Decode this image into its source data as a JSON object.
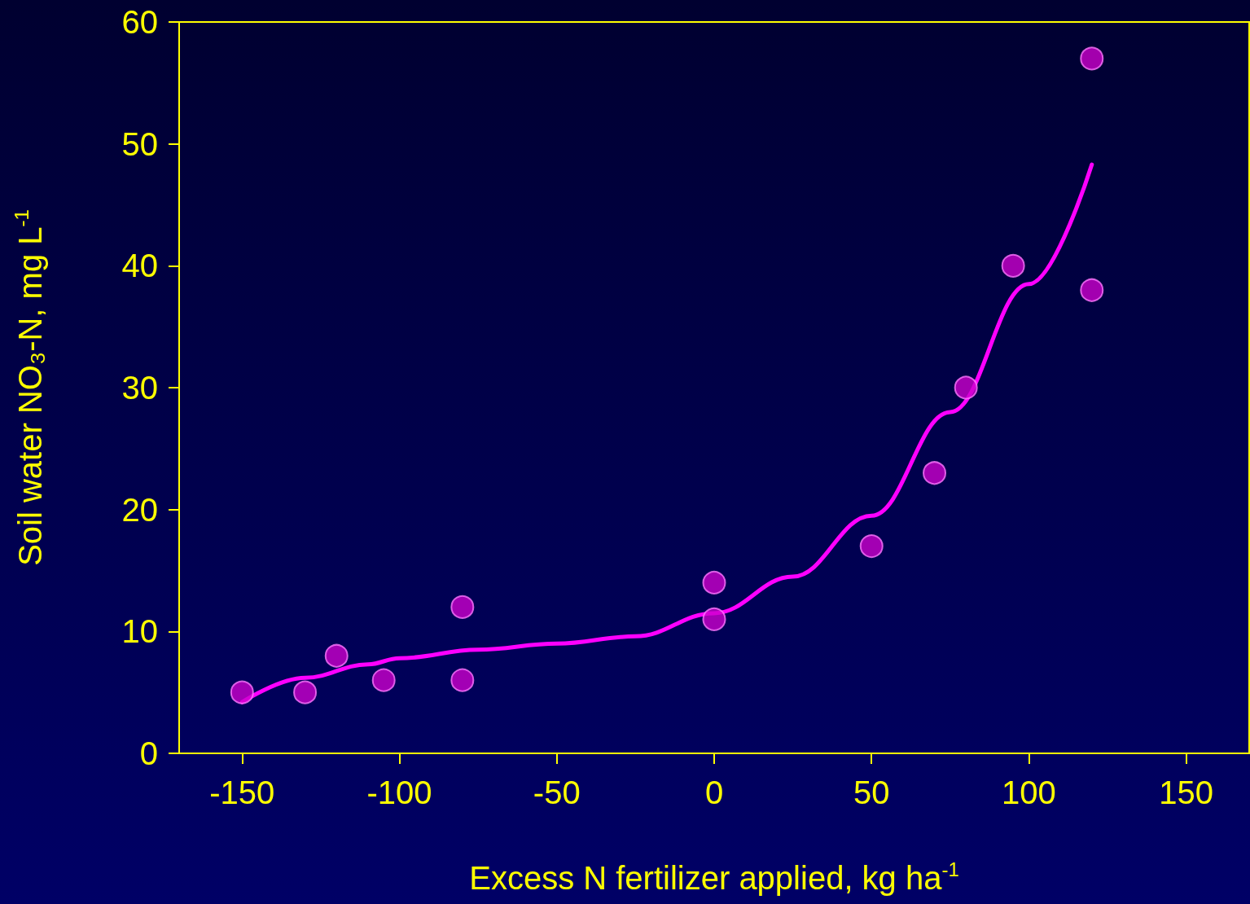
{
  "chart_data": {
    "type": "scatter",
    "xlabel": "Excess N fertilizer applied, kg ha$^{-1}$",
    "ylabel": "Soil water NO₃-N, mg L$^{-1}$",
    "xlim": [
      -170,
      170
    ],
    "xticks": [
      -150,
      -100,
      -50,
      0,
      50,
      100,
      150
    ],
    "ylim": [
      0,
      60
    ],
    "yticks": [
      0,
      10,
      20,
      30,
      40,
      50,
      60
    ],
    "grid": false,
    "series": [
      {
        "type": "scatter",
        "marker": "circle",
        "color": "#cc00cc",
        "x": [
          -150,
          -130,
          -120,
          -105,
          -80,
          -80,
          0,
          0,
          50,
          70,
          80,
          95,
          120,
          120
        ],
        "values": [
          5,
          5,
          8,
          6,
          12,
          6,
          14,
          11,
          17,
          23,
          30,
          40,
          57,
          38
        ]
      },
      {
        "type": "line",
        "marker": "none",
        "line_style": "solid",
        "color": "#ff00ff",
        "x": [
          -150,
          -130,
          -110,
          -100,
          -75,
          -50,
          -25,
          0,
          25,
          50,
          75,
          100,
          120
        ],
        "values": [
          4.2,
          6.2,
          7.3,
          7.8,
          8.5,
          9.0,
          9.6,
          11.5,
          14.5,
          19.5,
          28,
          38.5,
          48.3
        ]
      }
    ]
  }
}
